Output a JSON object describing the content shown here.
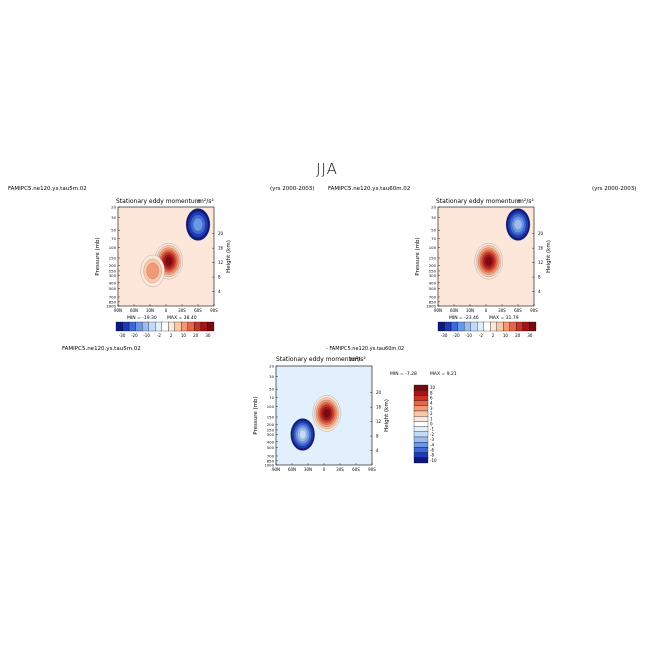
{
  "figure": {
    "title": "JJA"
  },
  "chart_data": [
    {
      "type": "contour",
      "case": "FAMIPC5.ne120.ys.tau5m.02",
      "years": "(yrs 2000-2003)",
      "title": "Stationary eddy momentum",
      "units": "m²/s²",
      "ylabel": "Pressure (mb)",
      "y2label": "Height (km)",
      "x_ticks": [
        "90N",
        "60N",
        "30N",
        "0",
        "30S",
        "60S",
        "90S"
      ],
      "y_ticks": [
        "20",
        "30",
        "50",
        "70",
        "100",
        "150",
        "200",
        "250",
        "300",
        "400",
        "500",
        "700",
        "850",
        "1000"
      ],
      "y2_ticks": [
        "20",
        "16",
        "12",
        "8",
        "4"
      ],
      "min_label": "MIN = -19.30",
      "max_label": "MAX = 38.40",
      "min": -19.3,
      "max": 38.4,
      "colorbar_labels": [
        "-30",
        "-20",
        "-10",
        "-2",
        "2",
        "10",
        "20",
        "30"
      ],
      "features": [
        {
          "kind": "max",
          "lat": -5,
          "p": 170,
          "value": 38.4
        },
        {
          "kind": "pos",
          "lat": 25,
          "p": 250,
          "value": 15
        },
        {
          "kind": "neg",
          "lat": -60,
          "p": 40,
          "value": -19.3
        }
      ]
    },
    {
      "type": "contour",
      "case": "FAMIPC5.ne120.ys.tau60m.02",
      "years": "(yrs 2000-2003)",
      "title": "Stationary eddy momentum",
      "units": "m²/s²",
      "ylabel": "Pressure (mb)",
      "y2label": "Height (km)",
      "x_ticks": [
        "90N",
        "60N",
        "30N",
        "0",
        "30S",
        "60S",
        "90S"
      ],
      "y_ticks": [
        "20",
        "30",
        "50",
        "70",
        "100",
        "150",
        "200",
        "250",
        "300",
        "400",
        "500",
        "700",
        "850",
        "1000"
      ],
      "y2_ticks": [
        "20",
        "16",
        "12",
        "8",
        "4"
      ],
      "min_label": "MIN = -23.46",
      "max_label": "MAX = 31.79",
      "min": -23.46,
      "max": 31.79,
      "colorbar_labels": [
        "-30",
        "-20",
        "-10",
        "-2",
        "2",
        "10",
        "20",
        "30"
      ],
      "features": [
        {
          "kind": "max",
          "lat": -5,
          "p": 170,
          "value": 31.79
        },
        {
          "kind": "neg",
          "lat": -60,
          "p": 40,
          "value": -23.46
        }
      ]
    },
    {
      "type": "contour",
      "case": "FAMIPC5.ne120.ys.tau5m.02",
      "title_prefix": "-",
      "case2": "FAMIPC5.ne120.ys.tau60m.02",
      "title": "Stationary eddy momentum",
      "units": "m²/s²",
      "ylabel": "Pressure (mb)",
      "y2label": "Height (km)",
      "x_ticks": [
        "90N",
        "60N",
        "30N",
        "0",
        "30S",
        "60S",
        "90S"
      ],
      "y_ticks": [
        "20",
        "30",
        "50",
        "70",
        "100",
        "150",
        "200",
        "250",
        "300",
        "400",
        "500",
        "700",
        "850",
        "1000"
      ],
      "y2_ticks": [
        "20",
        "16",
        "12",
        "8",
        "4"
      ],
      "min_label": "MIN = -7.28",
      "max_label": "MAX = 9.21",
      "min": -7.28,
      "max": 9.21,
      "colorbar_labels": [
        "10",
        "8",
        "6",
        "4",
        "3",
        "2",
        "1",
        "0",
        "-1",
        "-2",
        "-3",
        "-4",
        "-6",
        "-8",
        "-10"
      ],
      "features": [
        {
          "kind": "max",
          "lat": -5,
          "p": 130,
          "value": 9.21
        },
        {
          "kind": "neg",
          "lat": 40,
          "p": 300,
          "value": -7.28
        }
      ]
    }
  ],
  "colors": {
    "neg": [
      "#0b1a7e",
      "#1f39b8",
      "#3c6ad6",
      "#6b97e8",
      "#9cbcf1",
      "#c3dbf8",
      "#e2effc"
    ],
    "pos": [
      "#fde7db",
      "#f9c7aa",
      "#f29a76",
      "#e4664a",
      "#cb3324",
      "#a5141a",
      "#780b10"
    ],
    "white": "#ffffff"
  }
}
